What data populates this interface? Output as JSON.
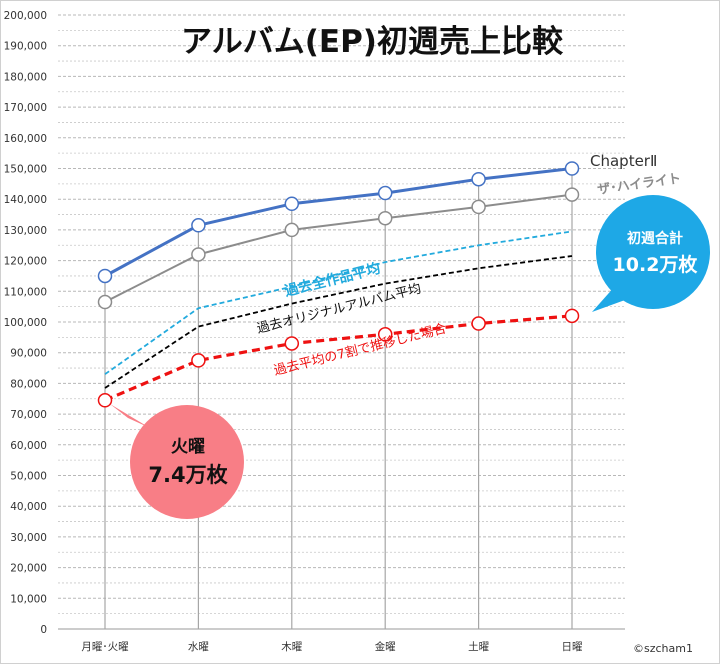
{
  "chart_data": {
    "type": "line",
    "title": "アルバム(EP)初週売上比較",
    "categories": [
      "月曜･火曜",
      "水曜",
      "木曜",
      "金曜",
      "土曜",
      "日曜"
    ],
    "ylim": [
      0,
      200000
    ],
    "ytick_step": 10000,
    "ytick_labels": [
      "0",
      "10,000",
      "20,000",
      "30,000",
      "40,000",
      "50,000",
      "60,000",
      "70,000",
      "80,000",
      "90,000",
      "100,000",
      "110,000",
      "120,000",
      "130,000",
      "140,000",
      "150,000",
      "160,000",
      "170,000",
      "180,000",
      "190,000",
      "200,000"
    ],
    "grid": true,
    "series": [
      {
        "name": "ChapterⅡ",
        "style": "solid-markers",
        "color": "#4472C4",
        "values": [
          115000,
          131500,
          138500,
          142000,
          146500,
          150000
        ]
      },
      {
        "name": "ザ･ハイライト",
        "style": "solid-markers",
        "color": "#8C8C8C",
        "values": [
          106500,
          122000,
          130000,
          133800,
          137500,
          141500
        ]
      },
      {
        "name": "過去全作品平均",
        "style": "dashed",
        "color": "#22AADD",
        "values": [
          83000,
          104500,
          111500,
          119500,
          125000,
          129500
        ]
      },
      {
        "name": "過去オリジナルアルバム平均",
        "style": "dashed",
        "color": "#000000",
        "values": [
          78500,
          98500,
          106000,
          112500,
          117500,
          121500
        ]
      },
      {
        "name": "過去平均の7割で推移した場合",
        "style": "dashed-markers",
        "color": "#EE1111",
        "values": [
          74500,
          87500,
          93000,
          96000,
          99500,
          102000
        ]
      }
    ],
    "annotations": {
      "callout_left": {
        "line1": "火曜",
        "line2": "7.4万枚",
        "color": "#F87E86"
      },
      "callout_right": {
        "line1": "初週合計",
        "line2": "10.2万枚",
        "color": "#1EA8E6"
      }
    },
    "credit": "©szcham1"
  }
}
